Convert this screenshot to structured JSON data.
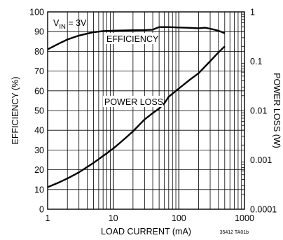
{
  "chart_data": {
    "type": "line",
    "x": {
      "label": "LOAD CURRENT (mA)",
      "scale": "log",
      "range": [
        1,
        1000
      ],
      "ticks": [
        "1",
        "10",
        "100",
        "1000"
      ]
    },
    "y_left": {
      "label": "EFFICIENCY (%)",
      "range": [
        0,
        100
      ],
      "ticks": [
        "0",
        "10",
        "20",
        "30",
        "40",
        "50",
        "60",
        "70",
        "80",
        "90",
        "100"
      ]
    },
    "y_right": {
      "label": "POWER LOSS (W)",
      "scale": "log",
      "range": [
        0.0001,
        1
      ],
      "ticks": [
        "0.0001",
        "0.001",
        "0.01",
        "0.1",
        "1"
      ]
    },
    "grid": true,
    "annotations": {
      "condition_main": "V",
      "condition_sub": "IN",
      "condition_value": " = 3V",
      "figure_code": "35412 TA01b"
    },
    "series": [
      {
        "name": "EFFICIENCY",
        "axis": "left",
        "x": [
          1,
          1.5,
          2,
          3,
          5,
          7,
          10,
          20,
          30,
          40,
          50,
          70,
          100,
          150,
          200,
          250,
          300,
          400,
          500
        ],
        "y": [
          81,
          84,
          86,
          88,
          89.7,
          90.3,
          90.5,
          90.7,
          90.8,
          91,
          92.3,
          92.3,
          92.1,
          91.9,
          91.7,
          92,
          91.5,
          90.5,
          89.2
        ]
      },
      {
        "name": "POWER LOSS",
        "axis": "right",
        "x": [
          1,
          1.5,
          2,
          3,
          5,
          7,
          10,
          15,
          20,
          30,
          40,
          50,
          60,
          70,
          100,
          150,
          200,
          300,
          400,
          500
        ],
        "y": [
          0.00028,
          0.00035,
          0.00042,
          0.00056,
          0.00087,
          0.0012,
          0.0017,
          0.0027,
          0.0038,
          0.0066,
          0.0089,
          0.011,
          0.014,
          0.019,
          0.028,
          0.043,
          0.057,
          0.1,
          0.15,
          0.2
        ]
      }
    ]
  }
}
